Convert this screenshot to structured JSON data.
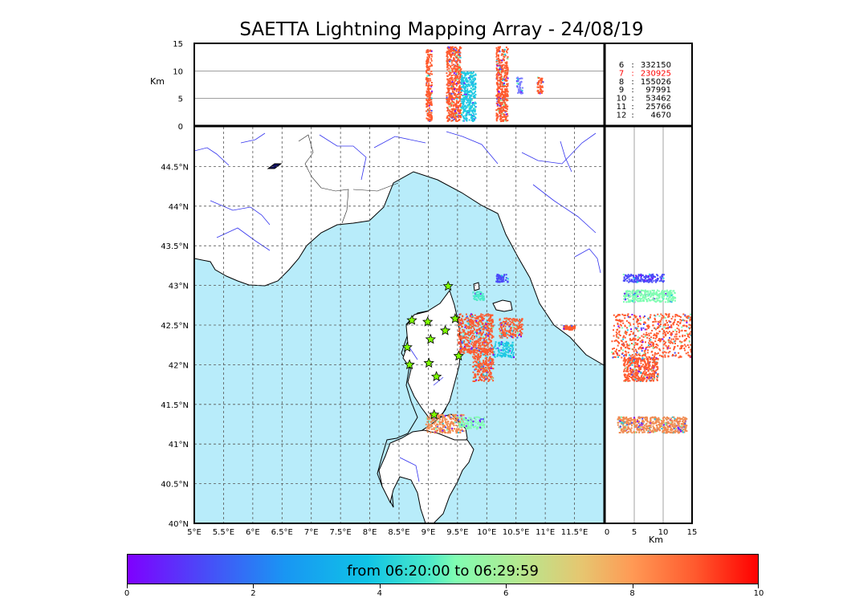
{
  "title": "SAETTA Lightning Mapping Array - 24/08/19",
  "chart_data": [
    {
      "type": "scatter",
      "panel": "altitude-vs-longitude",
      "ylabel": "Km",
      "ylim": [
        0,
        15
      ],
      "yticks": [
        "0",
        "5",
        "10",
        "15"
      ],
      "clusters": [
        {
          "lon": [
            8.95,
            9.05
          ],
          "alt": [
            1,
            14
          ],
          "color": "#ff5a2e"
        },
        {
          "lon": [
            9.3,
            9.55
          ],
          "alt": [
            1,
            14.5
          ],
          "color": "#ff5a2e"
        },
        {
          "lon": [
            9.55,
            9.8
          ],
          "alt": [
            1,
            10
          ],
          "color": "#1fc8e3"
        },
        {
          "lon": [
            10.15,
            10.35
          ],
          "alt": [
            1,
            14.5
          ],
          "color": "#ff5a2e"
        },
        {
          "lon": [
            10.5,
            10.6
          ],
          "alt": [
            6,
            9
          ],
          "color": "#7f7fff"
        },
        {
          "lon": [
            10.85,
            10.95
          ],
          "alt": [
            6,
            9
          ],
          "color": "#ff5a2e"
        }
      ]
    },
    {
      "type": "scatter",
      "panel": "map",
      "xticks": [
        "5°E",
        "5.5°E",
        "6°E",
        "6.5°E",
        "7°E",
        "7.5°E",
        "8°E",
        "8.5°E",
        "9°E",
        "9.5°E",
        "10°E",
        "10.5°E",
        "11°E",
        "11.5°E"
      ],
      "yticks": [
        "40°N",
        "40.5°N",
        "41°N",
        "41.5°N",
        "42°N",
        "42.5°N",
        "43°N",
        "43.5°N",
        "44°N",
        "44.5°N"
      ],
      "xlim": [
        5,
        12
      ],
      "ylim": [
        40,
        45
      ],
      "stations": [
        {
          "lon": 9.34,
          "lat": 42.99
        },
        {
          "lon": 8.72,
          "lat": 42.56
        },
        {
          "lon": 8.99,
          "lat": 42.54
        },
        {
          "lon": 9.46,
          "lat": 42.58
        },
        {
          "lon": 9.04,
          "lat": 42.32
        },
        {
          "lon": 9.29,
          "lat": 42.43
        },
        {
          "lon": 8.64,
          "lat": 42.22
        },
        {
          "lon": 9.52,
          "lat": 42.11
        },
        {
          "lon": 9.01,
          "lat": 42.02
        },
        {
          "lon": 8.68,
          "lat": 42.0
        },
        {
          "lon": 9.14,
          "lat": 41.85
        },
        {
          "lon": 9.1,
          "lat": 41.37
        }
      ],
      "clusters": [
        {
          "lon": [
            9.5,
            10.1
          ],
          "lat": [
            42.15,
            42.65
          ],
          "color": "#ff5a2e"
        },
        {
          "lon": [
            9.75,
            10.1
          ],
          "lat": [
            41.8,
            42.2
          ],
          "color": "#ff5a2e"
        },
        {
          "lon": [
            10.2,
            10.6
          ],
          "lat": [
            42.35,
            42.6
          ],
          "color": "#ff5a2e"
        },
        {
          "lon": [
            10.1,
            10.45
          ],
          "lat": [
            42.1,
            42.3
          ],
          "color": "#1fc8e3"
        },
        {
          "lon": [
            8.95,
            9.6
          ],
          "lat": [
            41.15,
            41.38
          ],
          "color": "#f08a50"
        },
        {
          "lon": [
            9.5,
            9.95
          ],
          "lat": [
            41.2,
            41.35
          ],
          "color": "#80fdb2"
        },
        {
          "lon": [
            9.75,
            9.95
          ],
          "lat": [
            42.82,
            42.93
          ],
          "color": "#4deac8"
        },
        {
          "lon": [
            10.15,
            10.35
          ],
          "lat": [
            43.05,
            43.15
          ],
          "color": "#4a4af8"
        },
        {
          "lon": [
            11.3,
            11.5
          ],
          "lat": [
            42.45,
            42.5
          ],
          "color": "#ff5a2e"
        }
      ]
    },
    {
      "type": "scatter",
      "panel": "latitude-vs-altitude",
      "xlabel": "Km",
      "xlim": [
        0,
        15
      ],
      "xticks": [
        "0",
        "5",
        "10",
        "15"
      ],
      "clusters": [
        {
          "alt": [
            3,
            10
          ],
          "lat": [
            43.05,
            43.15
          ],
          "color": "#4a4af8"
        },
        {
          "alt": [
            3,
            12
          ],
          "lat": [
            42.8,
            42.95
          ],
          "color": "#80fdb2"
        },
        {
          "alt": [
            1,
            15
          ],
          "lat": [
            42.1,
            42.65
          ],
          "color": "#ff5a2e"
        },
        {
          "alt": [
            3,
            9
          ],
          "lat": [
            41.8,
            42.1
          ],
          "color": "#ff5a2e"
        },
        {
          "alt": [
            2,
            14
          ],
          "lat": [
            41.15,
            41.35
          ],
          "color": "#f08a50"
        }
      ]
    }
  ],
  "minute_counts": [
    {
      "minute": "6",
      "count": "332150",
      "color": "#000000"
    },
    {
      "minute": "7",
      "count": "230925",
      "color": "#ff0000"
    },
    {
      "minute": "8",
      "count": "155026",
      "color": "#000000"
    },
    {
      "minute": "9",
      "count": "97991",
      "color": "#000000"
    },
    {
      "minute": "10",
      "count": "53462",
      "color": "#000000"
    },
    {
      "minute": "11",
      "count": "25766",
      "color": "#000000"
    },
    {
      "minute": "12",
      "count": "4670",
      "color": "#000000"
    }
  ],
  "colorbar": {
    "label": "from 06:20:00 to 06:29:59",
    "ticks": [
      "0",
      "2",
      "4",
      "6",
      "8",
      "10"
    ],
    "range": [
      0,
      10
    ]
  },
  "colors": {
    "sea": "#b8ecfa",
    "rivers": "#3333ee",
    "stations": "#7fff00"
  }
}
